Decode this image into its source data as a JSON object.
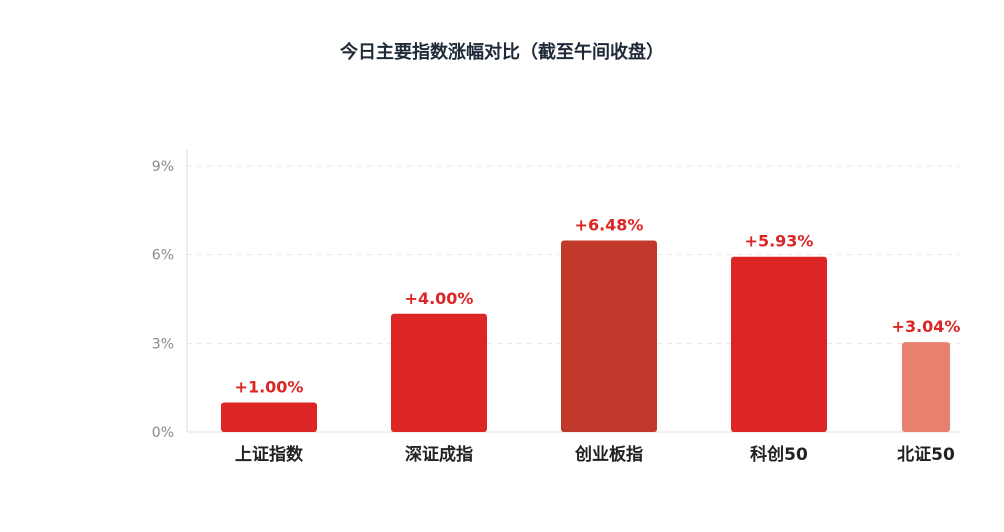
{
  "chart_data": {
    "type": "bar",
    "title": "今日主要指数涨幅对比（截至午间收盘）",
    "xlabel": "",
    "ylabel": "",
    "categories": [
      "上证指数",
      "深证成指",
      "创业板指",
      "科创50",
      "北证50"
    ],
    "values": [
      1.0,
      4.0,
      6.48,
      5.93,
      3.04
    ],
    "value_labels": [
      "+1.00%",
      "+4.00%",
      "+6.48%",
      "+5.93%",
      "+3.04%"
    ],
    "bar_colors": [
      "#dc2626",
      "#dc2626",
      "#c0392b",
      "#dc2626",
      "#e8806f"
    ],
    "value_label_color": "#dc2626",
    "ylim": [
      0,
      9
    ],
    "yticks": [
      0,
      3,
      6,
      9
    ],
    "ytick_labels": [
      "0%",
      "3%",
      "6%",
      "9%"
    ],
    "grid": true,
    "legend": "none"
  }
}
